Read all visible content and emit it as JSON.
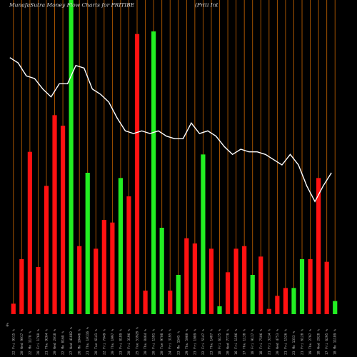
{
  "chart_data": {
    "type": "bar",
    "title": "MunafaSutra  Money Flow  Charts for PRITIBE",
    "subtitle": "(Priti   Int",
    "x_axis_start_label": "0%",
    "categories": [
      "22 Fri 9515 %",
      "20 Wed 9017 %",
      "22 Mo 1178 %",
      "20 Fri 1760 %",
      "21 Thu 9264 %",
      "20 Wed 2018 %",
      "22 Mo 8168 %",
      "27 Wed 41882 %",
      "26 Mo 10446 %",
      "21 Thu 10116 %",
      "20 Tue 6141 %",
      "22 Fri 7049 %",
      "20 Thu 1997 %",
      "23 Fri 8189 %",
      "20 Fri 3196 %",
      "25 Tue 53928 %",
      "20 Thu 8464 %",
      "20 Fri 1591 %",
      "20 Tue 9708 %",
      "24 Fri 3195 %",
      "23 Mo 1545 %",
      "29 Thu 5060 %",
      "23 Fri 1989 %",
      "22 Fri 5147 %",
      "23 Thu 1487 %",
      "18 Fri 6175 %",
      "20 Wed 7778 %",
      "16 Fri 1196 %",
      "17 Thu 1138 %",
      "18 Fri 9117 %",
      "18 Fri 7506 %",
      "21 Fri 3214 %",
      "20 Wed 4753 %",
      "21 Fri 1526 %",
      "23 Mo 1353 %",
      "21 Fri 6128 %",
      "19 Thu 2797 %",
      "18 Wed 2828 %",
      "17 Fri 6295 %",
      "18 Mo 11189 %"
    ],
    "bar_colors": [
      "red",
      "red",
      "red",
      "red",
      "red",
      "red",
      "red",
      "green",
      "red",
      "green",
      "red",
      "red",
      "red",
      "green",
      "red",
      "red",
      "red",
      "green",
      "green",
      "red",
      "green",
      "red",
      "red",
      "green",
      "red",
      "green",
      "red",
      "red",
      "red",
      "green",
      "red",
      "red",
      "red",
      "red",
      "green",
      "green",
      "red",
      "red",
      "red",
      "green"
    ],
    "bar_values": [
      4,
      21,
      62,
      18,
      49,
      76,
      72,
      185,
      26,
      54,
      25,
      36,
      35,
      52,
      45,
      107,
      9,
      108,
      33,
      9,
      15,
      29,
      27,
      61,
      25,
      3,
      16,
      25,
      26,
      15,
      22,
      2,
      7,
      10,
      10,
      21,
      21,
      52,
      20,
      5
    ],
    "value_max": 120,
    "line_values": [
      98,
      96,
      91,
      90,
      86,
      83,
      88,
      88,
      95,
      94,
      86,
      84,
      81,
      75,
      70,
      69,
      70,
      69,
      70,
      68,
      67,
      67,
      73,
      69,
      70,
      68,
      64,
      61,
      63,
      62,
      62,
      61,
      59,
      57,
      61,
      57,
      49,
      43,
      49,
      54
    ],
    "line_range": [
      0,
      120
    ],
    "colors": {
      "background": "#000000",
      "gridline": "#b35a00",
      "up": "#22ee22",
      "down": "#ff1111",
      "line": "#ffffff"
    },
    "grid": true
  }
}
